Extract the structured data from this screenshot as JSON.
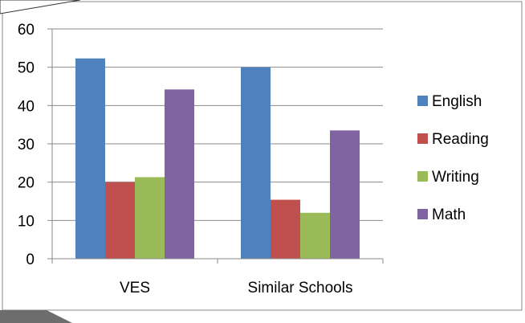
{
  "chart_data": {
    "type": "bar",
    "title": "",
    "xlabel": "",
    "ylabel": "",
    "ylim": [
      0,
      60
    ],
    "yticks": [
      0,
      10,
      20,
      30,
      40,
      50,
      60
    ],
    "grid": true,
    "legend_position": "right",
    "categories": [
      "VES",
      "Similar Schools"
    ],
    "series": [
      {
        "name": "English",
        "color": "#4f81bd",
        "values": [
          52.3,
          50.0
        ]
      },
      {
        "name": "Reading",
        "color": "#c0504d",
        "values": [
          20.0,
          15.4
        ]
      },
      {
        "name": "Writing",
        "color": "#9bbb59",
        "values": [
          21.3,
          12.0
        ]
      },
      {
        "name": "Math",
        "color": "#8064a2",
        "values": [
          44.2,
          33.5
        ]
      }
    ]
  }
}
